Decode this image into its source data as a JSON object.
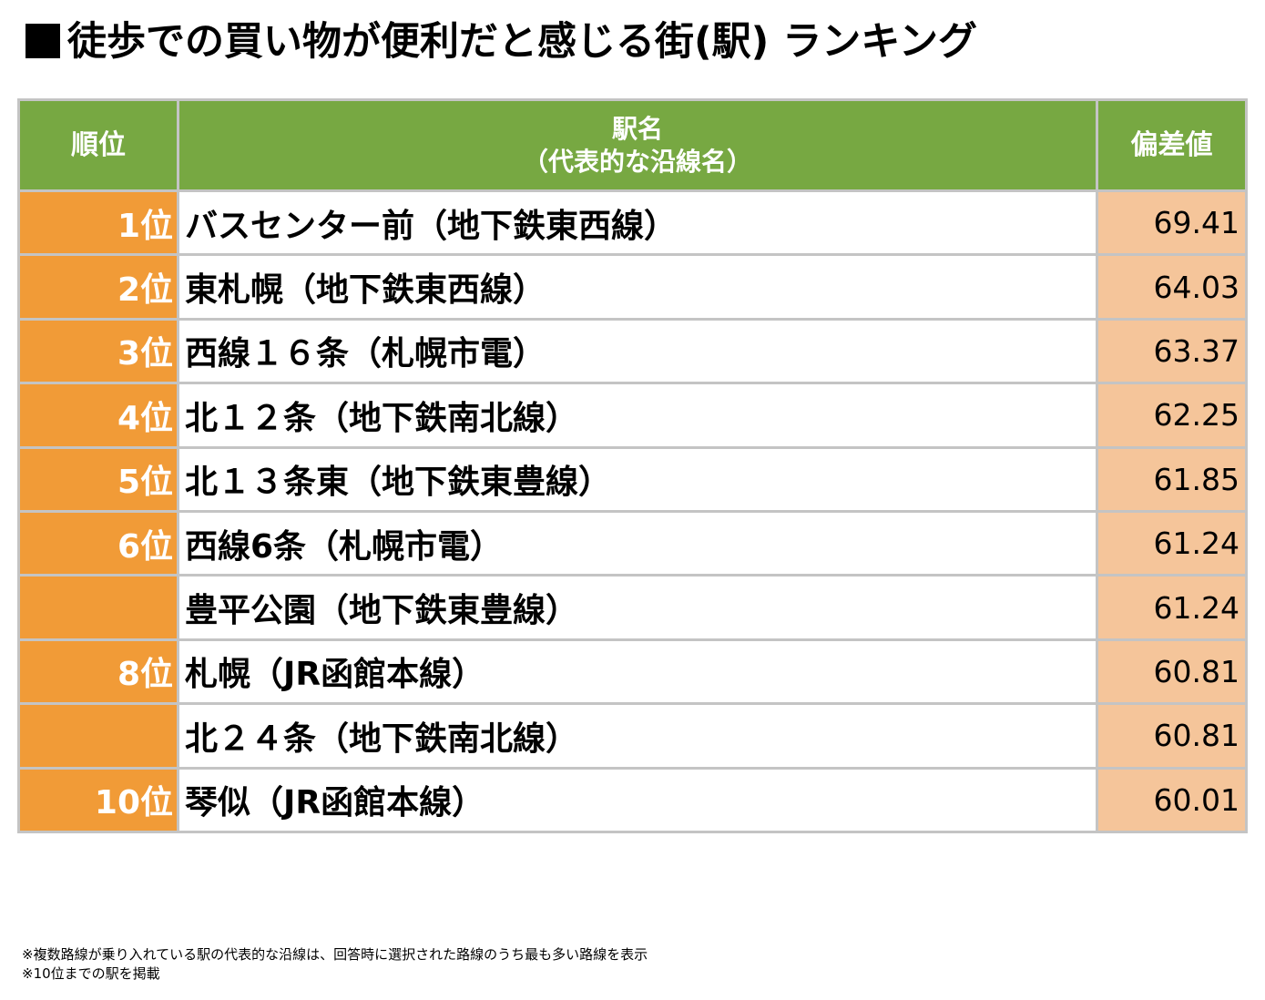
{
  "title": "徒歩での買い物が便利だと感じる街(駅) ランキング",
  "table": {
    "headers": {
      "rank": "順位",
      "station_line1": "駅名",
      "station_line2": "（代表的な沿線名）",
      "score": "偏差値"
    },
    "rows": [
      {
        "rank": "1位",
        "station": "バスセンター前（地下鉄東西線）",
        "score": "69.41"
      },
      {
        "rank": "2位",
        "station": "東札幌（地下鉄東西線）",
        "score": "64.03"
      },
      {
        "rank": "3位",
        "station": "西線１６条（札幌市電）",
        "score": "63.37"
      },
      {
        "rank": "4位",
        "station": "北１２条（地下鉄南北線）",
        "score": "62.25"
      },
      {
        "rank": "5位",
        "station": "北１３条東（地下鉄東豊線）",
        "score": "61.85"
      },
      {
        "rank": "6位",
        "station": "西線6条（札幌市電）",
        "score": "61.24"
      },
      {
        "rank": "",
        "station": "豊平公園（地下鉄東豊線）",
        "score": "61.24"
      },
      {
        "rank": "8位",
        "station": "札幌（JR函館本線）",
        "score": "60.81"
      },
      {
        "rank": "",
        "station": "北２４条（地下鉄南北線）",
        "score": "60.81"
      },
      {
        "rank": "10位",
        "station": "琴似（JR函館本線）",
        "score": "60.01"
      }
    ]
  },
  "notes": [
    "※複数路線が乗り入れている駅の代表的な沿線は、回答時に選択された路線のうち最も多い路線を表示",
    "※10位までの駅を掲載"
  ],
  "colors": {
    "header_green": "#77a842",
    "rank_orange": "#f19b37",
    "score_peach": "#f5c59a",
    "border_gray": "#c4c4c4"
  }
}
